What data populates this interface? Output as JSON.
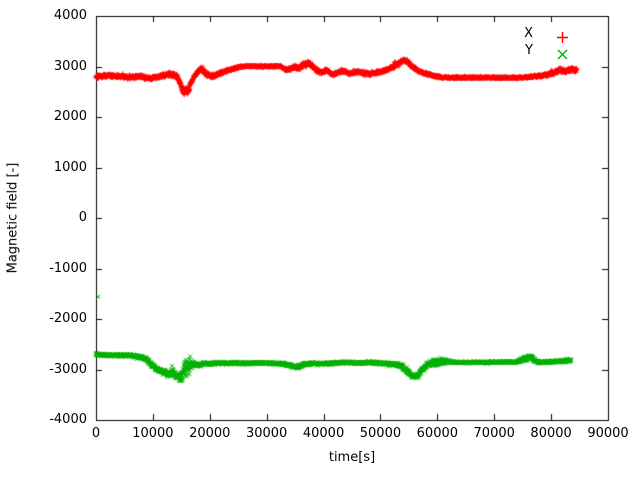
{
  "chart_data": {
    "type": "scatter",
    "title": "",
    "xlabel": "time[s]",
    "ylabel": "Magnetic field [-]",
    "xlim": [
      0,
      90000
    ],
    "ylim": [
      -4000,
      4000
    ],
    "grid": false,
    "legend_position": "top-right-inside",
    "background": "#ffffff",
    "border_color": "#000000",
    "xticks": [
      0,
      10000,
      20000,
      30000,
      40000,
      50000,
      60000,
      70000,
      80000,
      90000
    ],
    "xtick_labels": [
      "0",
      "10000",
      "20000",
      "30000",
      "40000",
      "50000",
      "60000",
      "70000",
      "80000",
      "90000"
    ],
    "yticks": [
      -4000,
      -3000,
      -2000,
      -1000,
      0,
      1000,
      2000,
      3000,
      4000
    ],
    "ytick_labels": [
      "-4000",
      "-3000",
      "-2000",
      "-1000",
      "0",
      "1000",
      "2000",
      "3000",
      "4000"
    ],
    "series": [
      {
        "name": "X",
        "color": "#ff0000",
        "marker": "plus",
        "x_range": [
          0,
          84500
        ],
        "sample_step": 30,
        "base": [
          [
            0,
            2800
          ],
          [
            2000,
            2820
          ],
          [
            4000,
            2800
          ],
          [
            6000,
            2790
          ],
          [
            8000,
            2800
          ],
          [
            9500,
            2765
          ],
          [
            11000,
            2800
          ],
          [
            13000,
            2850
          ],
          [
            14200,
            2820
          ],
          [
            15000,
            2600
          ],
          [
            15500,
            2490
          ],
          [
            16200,
            2520
          ],
          [
            17000,
            2760
          ],
          [
            17800,
            2880
          ],
          [
            18500,
            2950
          ],
          [
            19500,
            2850
          ],
          [
            20500,
            2800
          ],
          [
            21500,
            2850
          ],
          [
            22500,
            2900
          ],
          [
            24000,
            2950
          ],
          [
            25500,
            3000
          ],
          [
            28000,
            3005
          ],
          [
            30000,
            3000
          ],
          [
            32500,
            3005
          ],
          [
            33200,
            2935
          ],
          [
            34200,
            2955
          ],
          [
            35000,
            3000
          ],
          [
            35700,
            2950
          ],
          [
            36500,
            3040
          ],
          [
            37500,
            3060
          ],
          [
            38500,
            2950
          ],
          [
            39500,
            2880
          ],
          [
            40500,
            2920
          ],
          [
            41500,
            2850
          ],
          [
            42500,
            2875
          ],
          [
            43500,
            2920
          ],
          [
            44500,
            2860
          ],
          [
            46000,
            2900
          ],
          [
            47000,
            2870
          ],
          [
            48000,
            2850
          ],
          [
            49000,
            2880
          ],
          [
            50000,
            2900
          ],
          [
            51000,
            2930
          ],
          [
            52000,
            2980
          ],
          [
            53000,
            3050
          ],
          [
            54000,
            3120
          ],
          [
            54800,
            3100
          ],
          [
            55500,
            3000
          ],
          [
            56500,
            2930
          ],
          [
            57500,
            2870
          ],
          [
            58500,
            2850
          ],
          [
            59500,
            2805
          ],
          [
            60500,
            2790
          ],
          [
            62000,
            2780
          ],
          [
            68000,
            2780
          ],
          [
            75000,
            2780
          ],
          [
            77000,
            2800
          ],
          [
            79000,
            2830
          ],
          [
            80500,
            2880
          ],
          [
            81500,
            2930
          ],
          [
            82500,
            2900
          ],
          [
            83500,
            2950
          ],
          [
            84500,
            2930
          ]
        ],
        "noise_amp": [
          [
            0,
            50
          ],
          [
            8000,
            50
          ],
          [
            12000,
            60
          ],
          [
            14500,
            60
          ],
          [
            15200,
            90
          ],
          [
            16200,
            90
          ],
          [
            17000,
            55
          ],
          [
            20000,
            60
          ],
          [
            24000,
            40
          ],
          [
            26000,
            22
          ],
          [
            32500,
            22
          ],
          [
            33500,
            40
          ],
          [
            35000,
            60
          ],
          [
            37500,
            75
          ],
          [
            40000,
            50
          ],
          [
            45000,
            45
          ],
          [
            50000,
            45
          ],
          [
            52000,
            50
          ],
          [
            56000,
            50
          ],
          [
            58000,
            40
          ],
          [
            60000,
            30
          ],
          [
            62000,
            25
          ],
          [
            75000,
            25
          ],
          [
            78000,
            40
          ],
          [
            80000,
            60
          ],
          [
            84500,
            60
          ]
        ],
        "outliers": []
      },
      {
        "name": "Y",
        "color": "#00b000",
        "marker": "cross",
        "x_range": [
          0,
          83500
        ],
        "sample_step": 30,
        "base": [
          [
            0,
            -2700
          ],
          [
            3000,
            -2720
          ],
          [
            6000,
            -2720
          ],
          [
            8000,
            -2760
          ],
          [
            9000,
            -2810
          ],
          [
            9800,
            -2910
          ],
          [
            10800,
            -3000
          ],
          [
            11800,
            -3050
          ],
          [
            12800,
            -3100
          ],
          [
            13400,
            -3060
          ],
          [
            14200,
            -3120
          ],
          [
            15000,
            -3180
          ],
          [
            15600,
            -2950
          ],
          [
            16300,
            -2950
          ],
          [
            17000,
            -2880
          ],
          [
            18000,
            -2920
          ],
          [
            19000,
            -2880
          ],
          [
            20000,
            -2890
          ],
          [
            21000,
            -2870
          ],
          [
            23000,
            -2880
          ],
          [
            25000,
            -2870
          ],
          [
            27000,
            -2880
          ],
          [
            29000,
            -2870
          ],
          [
            31000,
            -2880
          ],
          [
            33000,
            -2890
          ],
          [
            34500,
            -2930
          ],
          [
            35500,
            -2950
          ],
          [
            36500,
            -2900
          ],
          [
            38000,
            -2880
          ],
          [
            40000,
            -2890
          ],
          [
            42000,
            -2870
          ],
          [
            44000,
            -2860
          ],
          [
            46000,
            -2870
          ],
          [
            48000,
            -2860
          ],
          [
            50000,
            -2870
          ],
          [
            52000,
            -2890
          ],
          [
            53500,
            -2920
          ],
          [
            54500,
            -3020
          ],
          [
            55500,
            -3120
          ],
          [
            56300,
            -3150
          ],
          [
            57000,
            -3050
          ],
          [
            57800,
            -2950
          ],
          [
            58500,
            -2900
          ],
          [
            59500,
            -2870
          ],
          [
            60500,
            -2850
          ],
          [
            61500,
            -2840
          ],
          [
            63000,
            -2860
          ],
          [
            66000,
            -2860
          ],
          [
            70000,
            -2855
          ],
          [
            74000,
            -2850
          ],
          [
            75500,
            -2780
          ],
          [
            76300,
            -2750
          ],
          [
            77000,
            -2820
          ],
          [
            78000,
            -2860
          ],
          [
            80000,
            -2850
          ],
          [
            82000,
            -2830
          ],
          [
            83500,
            -2820
          ]
        ],
        "noise_amp": [
          [
            0,
            35
          ],
          [
            8000,
            40
          ],
          [
            10000,
            60
          ],
          [
            12000,
            80
          ],
          [
            14000,
            90
          ],
          [
            15000,
            120
          ],
          [
            15600,
            250
          ],
          [
            16400,
            250
          ],
          [
            17000,
            60
          ],
          [
            18000,
            40
          ],
          [
            20000,
            35
          ],
          [
            30000,
            30
          ],
          [
            34000,
            45
          ],
          [
            36000,
            40
          ],
          [
            40000,
            35
          ],
          [
            44000,
            30
          ],
          [
            50000,
            35
          ],
          [
            53000,
            50
          ],
          [
            55000,
            60
          ],
          [
            57000,
            60
          ],
          [
            58500,
            80
          ],
          [
            59500,
            110
          ],
          [
            60500,
            110
          ],
          [
            61500,
            60
          ],
          [
            62500,
            25
          ],
          [
            74000,
            25
          ],
          [
            75500,
            70
          ],
          [
            76500,
            80
          ],
          [
            77500,
            40
          ],
          [
            80000,
            30
          ],
          [
            82000,
            40
          ],
          [
            83500,
            40
          ]
        ],
        "outliers": [
          [
            400,
            -1560
          ]
        ]
      }
    ]
  }
}
